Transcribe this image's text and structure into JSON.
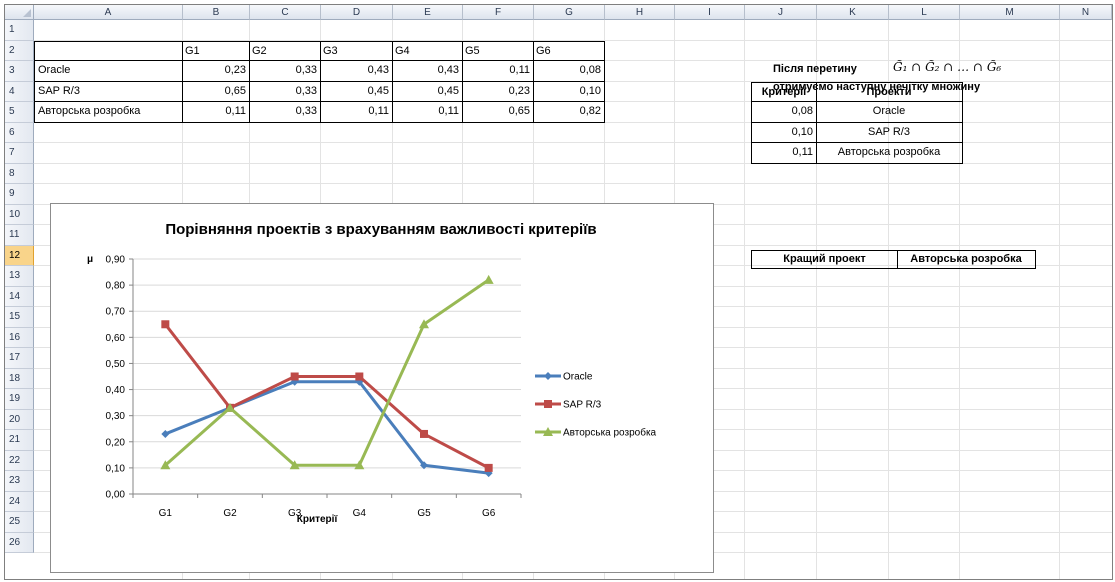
{
  "columns": [
    "A",
    "B",
    "C",
    "D",
    "E",
    "F",
    "G",
    "H",
    "I",
    "J",
    "K",
    "L",
    "M",
    "N"
  ],
  "rows": [
    "1",
    "2",
    "3",
    "4",
    "5",
    "6",
    "7",
    "8",
    "9",
    "10",
    "11",
    "12",
    "13",
    "14",
    "15",
    "16",
    "17",
    "18",
    "19",
    "20",
    "21",
    "22",
    "23",
    "24",
    "25",
    "26"
  ],
  "selected_row": "12",
  "table": {
    "headers": [
      "G1",
      "G2",
      "G3",
      "G4",
      "G5",
      "G6"
    ],
    "rows": [
      {
        "name": "Oracle",
        "values": [
          "0,23",
          "0,33",
          "0,43",
          "0,43",
          "0,11",
          "0,08"
        ]
      },
      {
        "name": "SAP R/3",
        "values": [
          "0,65",
          "0,33",
          "0,45",
          "0,45",
          "0,23",
          "0,10"
        ]
      },
      {
        "name": "Авторська розробка",
        "values": [
          "0,11",
          "0,33",
          "0,11",
          "0,11",
          "0,65",
          "0,82"
        ]
      }
    ]
  },
  "right_panel": {
    "line1_text": "Після перетину",
    "formula": "G̃₁ ∩ G̃₂ ∩ … ∩ G̃₆",
    "line2_text": "отримуємо наступну нечітку множину",
    "result_headers": [
      "Критерії",
      "Проекти"
    ],
    "result_rows": [
      {
        "value": "0,08",
        "project": "Oracle"
      },
      {
        "value": "0,10",
        "project": "SAP R/3"
      },
      {
        "value": "0,11",
        "project": "Авторська розробка"
      }
    ],
    "best_label": "Кращий проект",
    "best_value": "Авторська розробка"
  },
  "chart_data": {
    "type": "line",
    "title": "Порівняння проектів з врахуванням важливості критеріїв",
    "xlabel": "Критерії",
    "ylabel": "μ",
    "categories": [
      "G1",
      "G2",
      "G3",
      "G4",
      "G5",
      "G6"
    ],
    "ylim": [
      0,
      0.9
    ],
    "yticks": [
      "0,00",
      "0,10",
      "0,20",
      "0,30",
      "0,40",
      "0,50",
      "0,60",
      "0,70",
      "0,80",
      "0,90"
    ],
    "grid": true,
    "legend_position": "right",
    "series": [
      {
        "name": "Oracle",
        "values": [
          0.23,
          0.33,
          0.43,
          0.43,
          0.11,
          0.08
        ],
        "color": "#4a7ebb",
        "marker": "diamond"
      },
      {
        "name": "SAP R/3",
        "values": [
          0.65,
          0.33,
          0.45,
          0.45,
          0.23,
          0.1
        ],
        "color": "#be4b48",
        "marker": "square"
      },
      {
        "name": "Авторська розробка",
        "values": [
          0.11,
          0.33,
          0.11,
          0.11,
          0.65,
          0.82
        ],
        "color": "#98b954",
        "marker": "triangle"
      }
    ]
  }
}
